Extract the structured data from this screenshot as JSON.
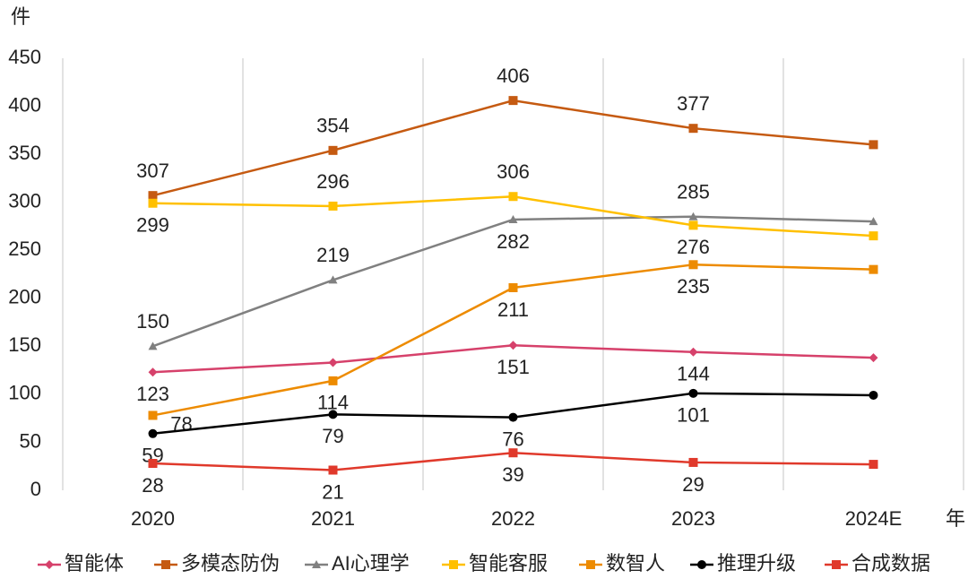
{
  "chart_data": {
    "type": "line",
    "y_label": "件",
    "x_label": "年",
    "categories": [
      "2020",
      "2021",
      "2022",
      "2023",
      "2024E"
    ],
    "ylim": [
      0,
      450
    ],
    "yticks": [
      0,
      50,
      100,
      150,
      200,
      250,
      300,
      350,
      400,
      450
    ],
    "grid": "vertical",
    "legend": "bottom",
    "series": [
      {
        "name": "智能体",
        "color": "#d6416b",
        "marker": "diamond",
        "values": [
          123,
          133,
          151,
          144,
          138
        ],
        "show_labels": [
          true,
          false,
          true,
          true,
          false
        ]
      },
      {
        "name": "多模态防伪",
        "color": "#c55a11",
        "marker": "square",
        "values": [
          307,
          354,
          406,
          377,
          360
        ],
        "show_labels": [
          true,
          true,
          true,
          true,
          false
        ]
      },
      {
        "name": "AI心理学",
        "color": "#808080",
        "marker": "triangle",
        "values": [
          150,
          219,
          282,
          285,
          280
        ],
        "show_labels": [
          true,
          true,
          true,
          true,
          false
        ]
      },
      {
        "name": "智能客服",
        "color": "#ffc000",
        "marker": "square",
        "values": [
          299,
          296,
          306,
          276,
          265
        ],
        "show_labels": [
          true,
          true,
          true,
          true,
          false
        ]
      },
      {
        "name": "数智人",
        "color": "#ed8b00",
        "marker": "square",
        "values": [
          78,
          114,
          211,
          235,
          230
        ],
        "show_labels": [
          true,
          true,
          true,
          true,
          false
        ]
      },
      {
        "name": "推理升级",
        "color": "#000000",
        "marker": "circle",
        "values": [
          59,
          79,
          76,
          101,
          99
        ],
        "show_labels": [
          true,
          true,
          true,
          true,
          false
        ]
      },
      {
        "name": "合成数据",
        "color": "#e0392b",
        "marker": "square",
        "values": [
          28,
          21,
          39,
          29,
          27
        ],
        "show_labels": [
          true,
          true,
          true,
          true,
          false
        ]
      }
    ]
  }
}
